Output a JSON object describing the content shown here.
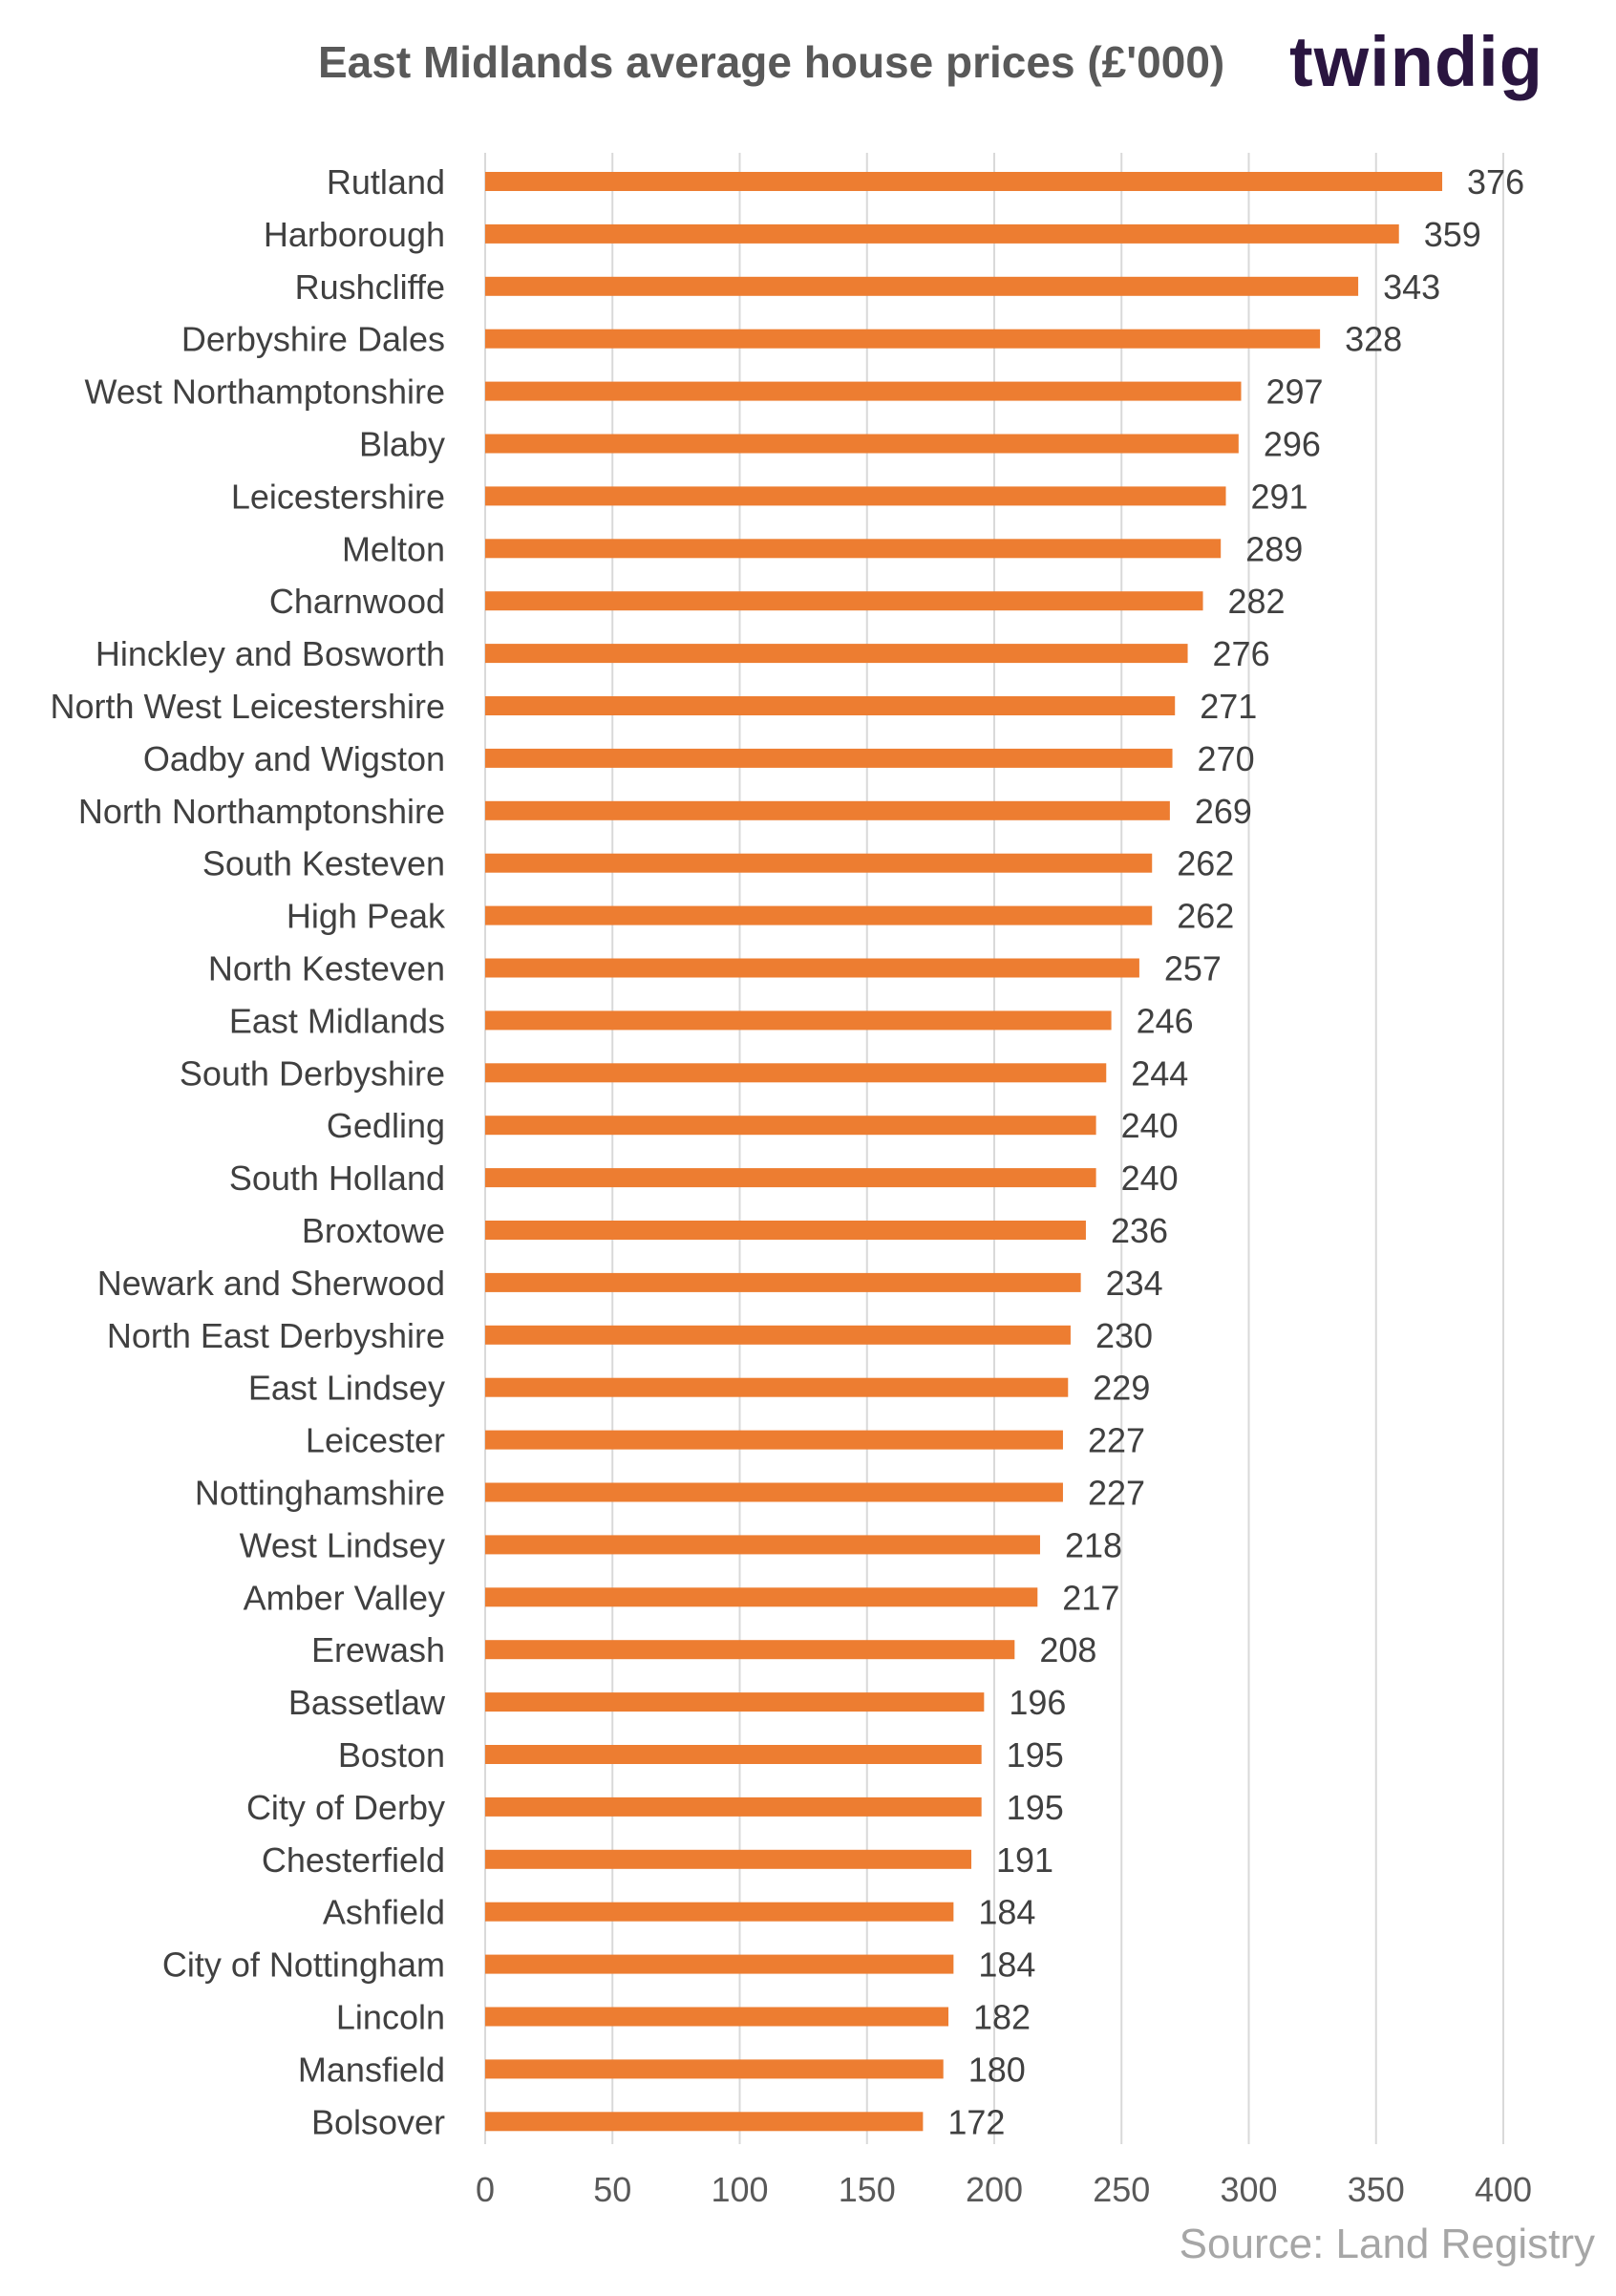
{
  "title": "East Midlands  average house prices (£'000)",
  "brand": "twindig",
  "source": "Source: Land Registry",
  "colors": {
    "bar": "#ED7D31",
    "grid": "#D9D9D9",
    "text": "#404040",
    "brand": "#2a1540"
  },
  "chart_data": {
    "type": "bar",
    "orientation": "horizontal",
    "title": "East Midlands  average house prices (£'000)",
    "xlabel": "",
    "ylabel": "",
    "xlim": [
      0,
      400
    ],
    "x_ticks": [
      0,
      50,
      100,
      150,
      200,
      250,
      300,
      350,
      400
    ],
    "grid": "vertical",
    "categories": [
      "Rutland",
      "Harborough",
      "Rushcliffe",
      "Derbyshire Dales",
      "West Northamptonshire",
      "Blaby",
      "Leicestershire",
      "Melton",
      "Charnwood",
      "Hinckley and Bosworth",
      "North West Leicestershire",
      "Oadby and Wigston",
      "North Northamptonshire",
      "South Kesteven",
      "High Peak",
      "North Kesteven",
      "East Midlands",
      "South Derbyshire",
      "Gedling",
      "South Holland",
      "Broxtowe",
      "Newark and Sherwood",
      "North East Derbyshire",
      "East Lindsey",
      "Leicester",
      "Nottinghamshire",
      "West Lindsey",
      "Amber Valley",
      "Erewash",
      "Bassetlaw",
      "Boston",
      "City of Derby",
      "Chesterfield",
      "Ashfield",
      "City of Nottingham",
      "Lincoln",
      "Mansfield",
      "Bolsover"
    ],
    "values": [
      376,
      359,
      343,
      328,
      297,
      296,
      291,
      289,
      282,
      276,
      271,
      270,
      269,
      262,
      262,
      257,
      246,
      244,
      240,
      240,
      236,
      234,
      230,
      229,
      227,
      227,
      218,
      217,
      208,
      196,
      195,
      195,
      191,
      184,
      184,
      182,
      180,
      172
    ]
  }
}
